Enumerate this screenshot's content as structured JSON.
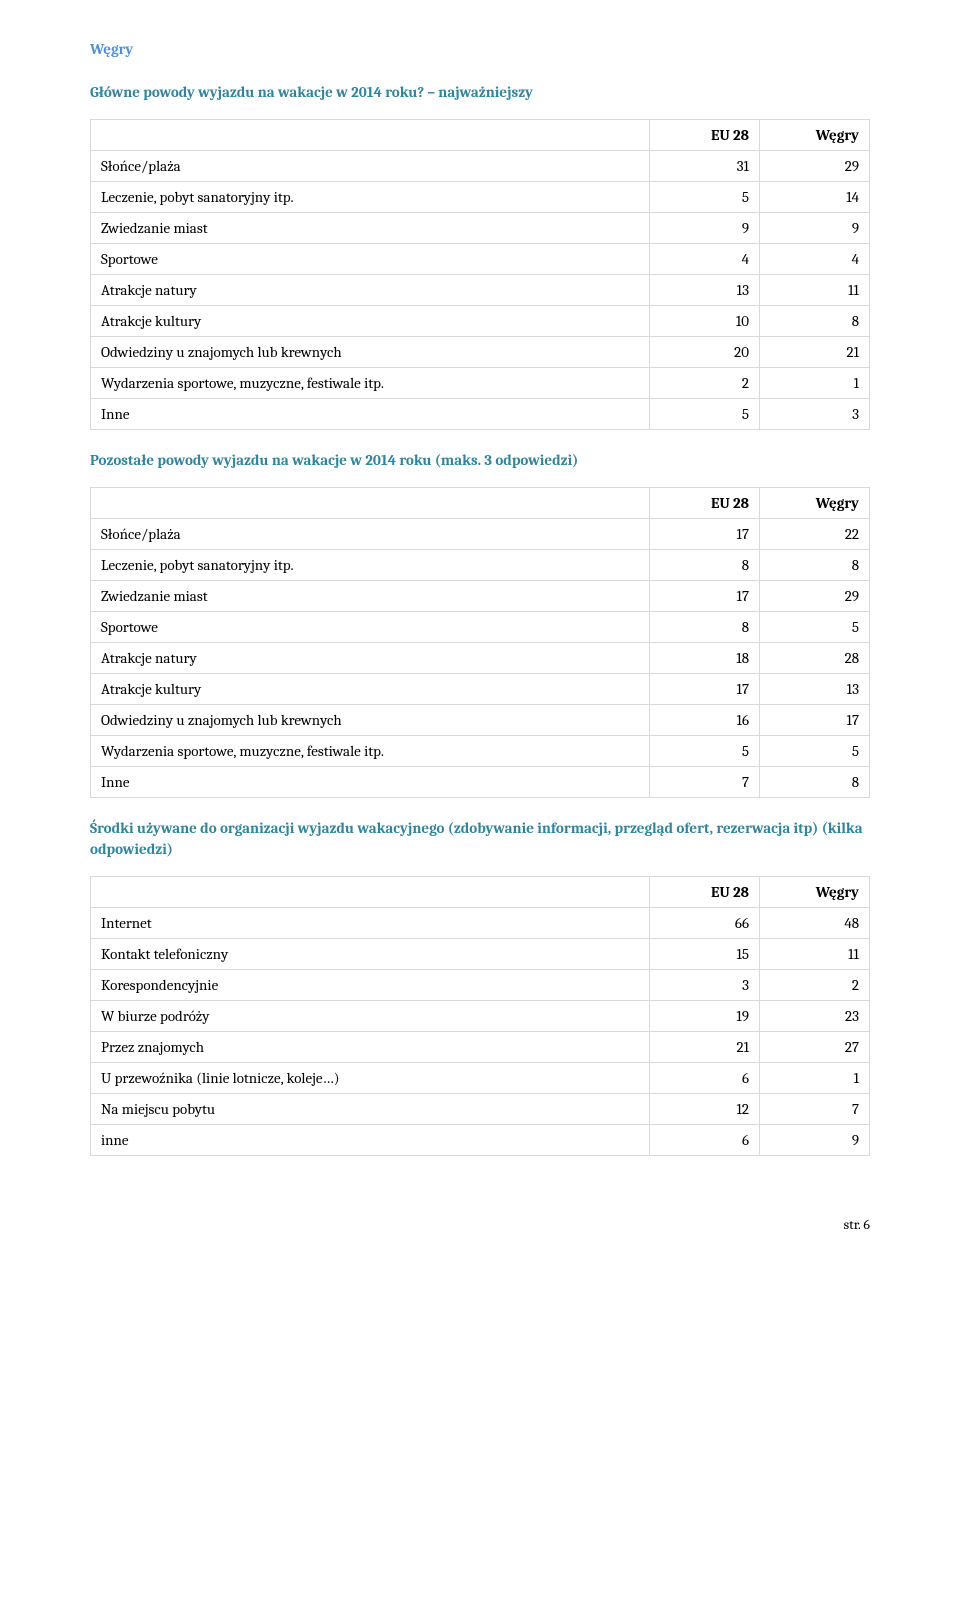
{
  "page": {
    "country_header": "Węgry",
    "footer": "str. 6"
  },
  "colors": {
    "country_header_color": "#548dd4",
    "question_color": "#31849b",
    "border_color": "#d9d9d9",
    "text_color": "#000000",
    "background": "#ffffff"
  },
  "typography": {
    "base_fontsize_pt": 11,
    "heading_bold": true,
    "font_family": "Cambria"
  },
  "tables": [
    {
      "question": "Główne powody wyjazdu na wakacje w 2014 roku? – najważniejszy",
      "columns": [
        "",
        "EU 28",
        "Węgry"
      ],
      "rows": [
        [
          "Słońce/plaża",
          "31",
          "29"
        ],
        [
          "Leczenie, pobyt sanatoryjny itp.",
          "5",
          "14"
        ],
        [
          "Zwiedzanie miast",
          "9",
          "9"
        ],
        [
          "Sportowe",
          "4",
          "4"
        ],
        [
          "Atrakcje natury",
          "13",
          "11"
        ],
        [
          "Atrakcje kultury",
          "10",
          "8"
        ],
        [
          "Odwiedziny u znajomych lub krewnych",
          "20",
          "21"
        ],
        [
          "Wydarzenia sportowe, muzyczne, festiwale itp.",
          "2",
          "1"
        ],
        [
          "Inne",
          "5",
          "3"
        ]
      ]
    },
    {
      "question": "Pozostałe powody wyjazdu na wakacje w 2014 roku (maks. 3 odpowiedzi)",
      "columns": [
        "",
        "EU 28",
        "Węgry"
      ],
      "rows": [
        [
          "Słońce/plaża",
          "17",
          "22"
        ],
        [
          "Leczenie, pobyt sanatoryjny itp.",
          "8",
          "8"
        ],
        [
          "Zwiedzanie miast",
          "17",
          "29"
        ],
        [
          "Sportowe",
          "8",
          "5"
        ],
        [
          "Atrakcje natury",
          "18",
          "28"
        ],
        [
          "Atrakcje kultury",
          "17",
          "13"
        ],
        [
          "Odwiedziny u znajomych lub krewnych",
          "16",
          "17"
        ],
        [
          "Wydarzenia sportowe, muzyczne, festiwale itp.",
          "5",
          "5"
        ],
        [
          "Inne",
          "7",
          "8"
        ]
      ]
    },
    {
      "question": "Środki używane do organizacji wyjazdu wakacyjnego (zdobywanie informacji, przegląd ofert, rezerwacja itp) (kilka odpowiedzi)",
      "columns": [
        "",
        "EU 28",
        "Węgry"
      ],
      "rows": [
        [
          "Internet",
          "66",
          "48"
        ],
        [
          "Kontakt telefoniczny",
          "15",
          "11"
        ],
        [
          "Korespondencyjnie",
          "3",
          "2"
        ],
        [
          "W biurze podróży",
          "19",
          "23"
        ],
        [
          "Przez znajomych",
          "21",
          "27"
        ],
        [
          "U przewoźnika (linie lotnicze, koleje…)",
          "6",
          "1"
        ],
        [
          "Na miejscu pobytu",
          "12",
          "7"
        ],
        [
          "inne",
          "6",
          "9"
        ]
      ]
    }
  ]
}
